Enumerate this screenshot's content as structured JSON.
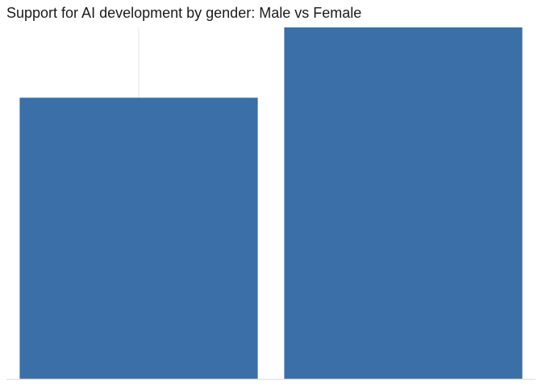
{
  "chart_data": {
    "type": "bar",
    "title": "Support for AI development by gender: Male vs Female",
    "categories": [
      "",
      ""
    ],
    "values": [
      80,
      100
    ],
    "ylim": [
      0,
      100
    ],
    "bar_color": "#3a6fa7",
    "gridline_color": "#e6e6e6",
    "baseline_color": "#e6e6e6",
    "grid": true,
    "legend": "none"
  }
}
